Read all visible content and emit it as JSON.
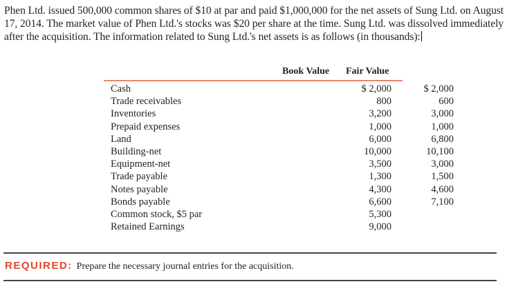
{
  "intro": "Phen Ltd. issued 500,000 common shares of $10 at par and paid $1,000,000 for the net assets of Sung Ltd. on August 17, 2014. The market value of Phen Ltd.'s stocks was $20 per share at the time. Sung Ltd. was dissolved immediately after the acquisition. The information related to Sung Ltd.'s net assets is as follows (in thousands):",
  "table": {
    "headers": {
      "book": "Book Value",
      "fair": "Fair Value"
    },
    "rows": [
      {
        "label": "Cash",
        "book": "$ 2,000",
        "fair": "$ 2,000"
      },
      {
        "label": "Trade receivables",
        "book": "800",
        "fair": "600"
      },
      {
        "label": "Inventories",
        "book": "3,200",
        "fair": "3,000"
      },
      {
        "label": "Prepaid expenses",
        "book": "1,000",
        "fair": "1,000"
      },
      {
        "label": "Land",
        "book": "6,000",
        "fair": "6,800"
      },
      {
        "label": "Building-net",
        "book": "10,000",
        "fair": "10,100"
      },
      {
        "label": "Equipment-net",
        "book": "3,500",
        "fair": "3,000"
      },
      {
        "label": "Trade payable",
        "book": "1,300",
        "fair": "1,500"
      },
      {
        "label": "Notes payable",
        "book": "4,300",
        "fair": "4,600"
      },
      {
        "label": "Bonds payable",
        "book": "6,600",
        "fair": "7,100"
      },
      {
        "label": "Common stock, $5 par",
        "book": "5,300",
        "fair": ""
      },
      {
        "label": "Retained Earnings",
        "book": "9,000",
        "fair": ""
      }
    ]
  },
  "required": {
    "label": "REQUIRED:",
    "text": "Prepare the necessary journal entries for the acquisition."
  },
  "colors": {
    "accent": "#e1452d",
    "rule": "#e8866a"
  }
}
